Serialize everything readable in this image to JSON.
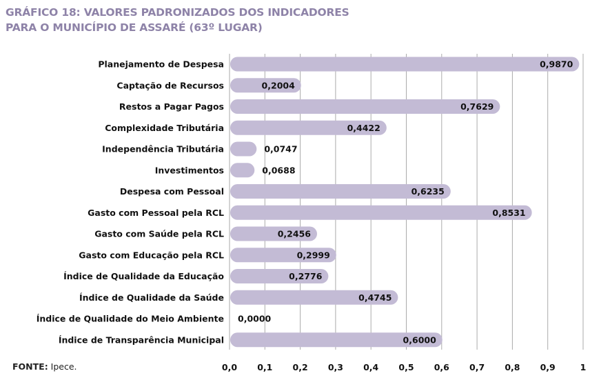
{
  "chart_data": {
    "type": "bar",
    "orientation": "horizontal",
    "title": "GRÁFICO 18: VALORES PADRONIZADOS DOS INDICADORES PARA O MUNICÍPIO DE ASSARÉ (63º LUGAR)",
    "title_lines": [
      "GRÁFICO 18: VALORES PADRONIZADOS DOS INDICADORES",
      "PARA O MUNICÍPIO DE ASSARÉ (63º LUGAR)"
    ],
    "categories": [
      "Planejamento de Despesa",
      "Captação de Recursos",
      "Restos a Pagar Pagos",
      "Complexidade Tributária",
      "Independência Tributária",
      "Investimentos",
      "Despesa com Pessoal",
      "Gasto com Pessoal pela RCL",
      "Gasto com Saúde pela RCL",
      "Gasto com Educação pela RCL",
      "Índice de Qualidade da Educação",
      "Índice de Qualidade da Saúde",
      "Índice de Qualidade do Meio Ambiente",
      "Índice de Transparência Municipal"
    ],
    "values": [
      0.987,
      0.2004,
      0.7629,
      0.4422,
      0.0747,
      0.0688,
      0.6235,
      0.8531,
      0.2456,
      0.2999,
      0.2776,
      0.4745,
      0.0,
      0.6
    ],
    "value_labels": [
      "0,9870",
      "0,2004",
      "0,7629",
      "0,4422",
      "0,0747",
      "0,0688",
      "0,6235",
      "0,8531",
      "0,2456",
      "0,2999",
      "0,2776",
      "0,4745",
      "0,0000",
      "0,6000"
    ],
    "xlim": [
      0,
      1
    ],
    "xticks": [
      "0,0",
      "0,1",
      "0,2",
      "0,3",
      "0,4",
      "0,5",
      "0,6",
      "0,7",
      "0,8",
      "0,9",
      "1"
    ],
    "grid": true,
    "bar_color": "#c3bbd5",
    "title_color": "#8e83a8"
  },
  "source": {
    "label": "FONTE:",
    "text": " Ipece."
  }
}
